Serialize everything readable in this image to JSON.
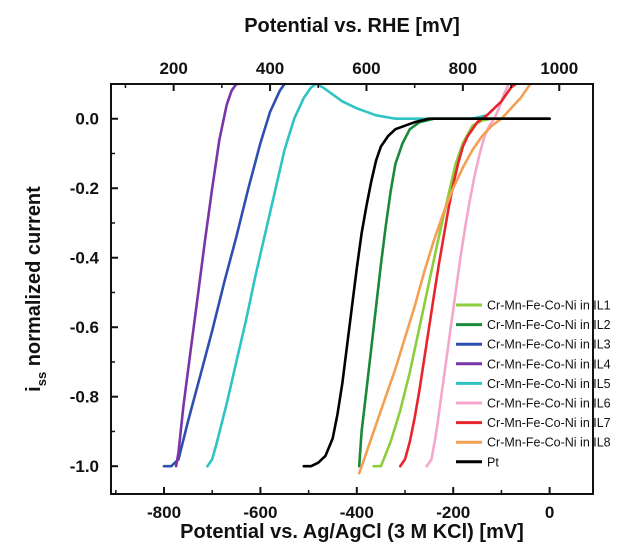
{
  "chart_data": {
    "type": "line",
    "title": "",
    "xlabel": "Potential vs. Ag/AgCl (3 M KCl) [mV]",
    "x2label": "Potential vs. RHE [mV]",
    "ylabel": "i",
    "ylabel_sub": "ss",
    "ylabel_rest": " normalized current",
    "xlim": [
      -910,
      90
    ],
    "ylim": [
      -1.08,
      0.1
    ],
    "x2_offset_mv": 980,
    "x_ticks": [
      -800,
      -600,
      -400,
      -200,
      0
    ],
    "x_tick_labels": [
      "-800",
      "-600",
      "-400",
      "-200",
      "0"
    ],
    "x2_ticks": [
      200,
      400,
      600,
      800,
      1000
    ],
    "x2_tick_labels": [
      "200",
      "400",
      "600",
      "800",
      "1000"
    ],
    "y_ticks": [
      0.0,
      -0.2,
      -0.4,
      -0.6,
      -0.8,
      -1.0
    ],
    "y_tick_labels": [
      "0.0",
      "-0.2",
      "-0.4",
      "-0.6",
      "-0.8",
      "-1.0"
    ],
    "grid": false,
    "legend_position": "lower-right",
    "series": [
      {
        "name": "Cr-Mn-Fe-Co-Ni in IL1",
        "color": "#8ccd3c",
        "x": [
          -365,
          -350,
          -330,
          -310,
          -290,
          -270,
          -250,
          -230,
          -210,
          -195,
          -180,
          -160,
          -140,
          -120,
          -100,
          -80,
          -60,
          -40,
          -20,
          0
        ],
        "y": [
          -1.0,
          -1.0,
          -0.93,
          -0.84,
          -0.73,
          -0.6,
          -0.47,
          -0.34,
          -0.22,
          -0.13,
          -0.07,
          -0.02,
          -0.005,
          0.0,
          0.0,
          0.0,
          0.0,
          0.0,
          0.0,
          0.0
        ]
      },
      {
        "name": "Cr-Mn-Fe-Co-Ni in IL2",
        "color": "#1a8a3a",
        "x": [
          -395,
          -390,
          -380,
          -370,
          -360,
          -350,
          -340,
          -330,
          -320,
          -305,
          -290,
          -270,
          -240,
          -200,
          -150,
          -100,
          -50,
          0
        ],
        "y": [
          -1.0,
          -0.9,
          -0.78,
          -0.66,
          -0.54,
          -0.42,
          -0.31,
          -0.21,
          -0.13,
          -0.07,
          -0.03,
          -0.01,
          0.0,
          0.0,
          0.0,
          0.0,
          0.0,
          0.0
        ]
      },
      {
        "name": "Cr-Mn-Fe-Co-Ni in IL3",
        "color": "#2f4fb0",
        "x": [
          -800,
          -785,
          -770,
          -750,
          -725,
          -700,
          -675,
          -650,
          -625,
          -600,
          -580,
          -560,
          -550
        ],
        "y": [
          -1.0,
          -1.0,
          -0.98,
          -0.87,
          -0.74,
          -0.61,
          -0.47,
          -0.34,
          -0.2,
          -0.07,
          0.02,
          0.08,
          0.1
        ]
      },
      {
        "name": "Cr-Mn-Fe-Co-Ni in IL4",
        "color": "#7a35a8",
        "x": [
          -775,
          -770,
          -760,
          -745,
          -730,
          -715,
          -700,
          -685,
          -670,
          -660,
          -650,
          -645
        ],
        "y": [
          -1.0,
          -0.96,
          -0.83,
          -0.67,
          -0.51,
          -0.35,
          -0.2,
          -0.06,
          0.04,
          0.08,
          0.1,
          0.1
        ]
      },
      {
        "name": "Cr-Mn-Fe-Co-Ni in IL5",
        "color": "#2ec4c4",
        "x": [
          -710,
          -700,
          -690,
          -670,
          -650,
          -630,
          -610,
          -590,
          -570,
          -550,
          -530,
          -510,
          -495,
          -485,
          -470,
          -450,
          -430,
          -400,
          -360,
          -320,
          -280,
          -240,
          -200,
          -160,
          -130
        ],
        "y": [
          -1.0,
          -0.98,
          -0.93,
          -0.82,
          -0.7,
          -0.58,
          -0.45,
          -0.33,
          -0.21,
          -0.09,
          0.0,
          0.06,
          0.09,
          0.1,
          0.09,
          0.07,
          0.05,
          0.03,
          0.01,
          0.0,
          0.0,
          0.0,
          0.0,
          0.0,
          0.01
        ]
      },
      {
        "name": "Cr-Mn-Fe-Co-Ni in IL6",
        "color": "#f4a7cc",
        "x": [
          -255,
          -245,
          -235,
          -225,
          -215,
          -205,
          -195,
          -185,
          -175,
          -165,
          -155,
          -145,
          -135,
          -125,
          -115,
          -105,
          -95,
          -85
        ],
        "y": [
          -1.0,
          -0.98,
          -0.9,
          -0.8,
          -0.7,
          -0.6,
          -0.5,
          -0.4,
          -0.31,
          -0.23,
          -0.16,
          -0.1,
          -0.05,
          -0.02,
          0.0,
          0.03,
          0.07,
          0.1
        ]
      },
      {
        "name": "Cr-Mn-Fe-Co-Ni in IL7",
        "color": "#e8252c",
        "x": [
          -310,
          -300,
          -290,
          -280,
          -270,
          -260,
          -250,
          -240,
          -230,
          -220,
          -210,
          -200,
          -190,
          -180,
          -170,
          -160,
          -150,
          -140,
          -130,
          -115,
          -100,
          -90,
          -80,
          -70
        ],
        "y": [
          -1.0,
          -0.98,
          -0.93,
          -0.86,
          -0.78,
          -0.69,
          -0.6,
          -0.51,
          -0.42,
          -0.34,
          -0.26,
          -0.19,
          -0.13,
          -0.08,
          -0.05,
          -0.03,
          -0.01,
          0.0,
          0.01,
          0.03,
          0.05,
          0.07,
          0.09,
          0.1
        ]
      },
      {
        "name": "Cr-Mn-Fe-Co-Ni in IL8",
        "color": "#f3a055",
        "x": [
          -395,
          -385,
          -370,
          -355,
          -340,
          -320,
          -300,
          -280,
          -260,
          -240,
          -220,
          -200,
          -180,
          -160,
          -140,
          -120,
          -100,
          -80,
          -60,
          -40
        ],
        "y": [
          -1.02,
          -0.98,
          -0.92,
          -0.86,
          -0.8,
          -0.72,
          -0.63,
          -0.54,
          -0.44,
          -0.35,
          -0.27,
          -0.2,
          -0.14,
          -0.09,
          -0.05,
          -0.02,
          0.0,
          0.03,
          0.06,
          0.1
        ]
      },
      {
        "name": "Pt",
        "color": "#000000",
        "x": [
          -510,
          -495,
          -480,
          -465,
          -450,
          -440,
          -430,
          -420,
          -410,
          -400,
          -390,
          -380,
          -370,
          -360,
          -350,
          -335,
          -320,
          -300,
          -280,
          -250,
          -200,
          -150,
          -100,
          -50,
          0
        ],
        "y": [
          -1.0,
          -1.0,
          -0.99,
          -0.97,
          -0.92,
          -0.85,
          -0.76,
          -0.65,
          -0.54,
          -0.43,
          -0.33,
          -0.25,
          -0.18,
          -0.12,
          -0.08,
          -0.05,
          -0.03,
          -0.02,
          -0.01,
          0.0,
          0.0,
          0.0,
          0.0,
          0.0,
          0.0
        ]
      }
    ]
  }
}
